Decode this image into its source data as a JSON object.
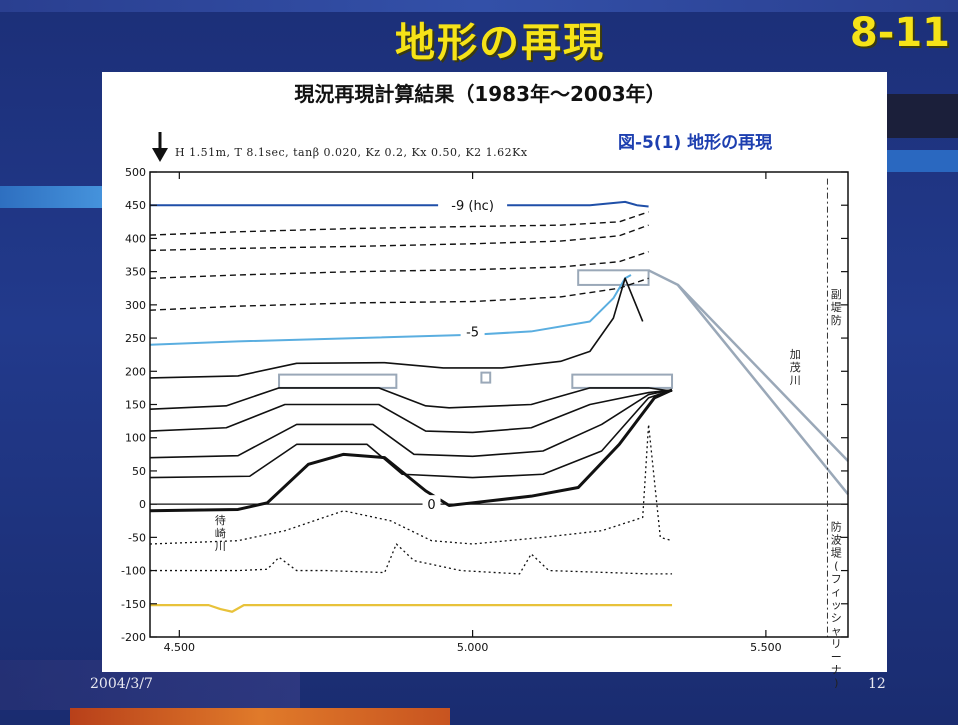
{
  "slide": {
    "title": "地形の再現",
    "number": "8-11",
    "date": "2004/3/7",
    "page": "12"
  },
  "figure": {
    "title": "現況再現計算結果（1983年～2003年）",
    "label": "図-5(1)  地形の再現",
    "params": "H 1.51m, T 8.1sec, tanβ 0.020, Kz 0.2, Kx 0.50, K2 1.62Kx"
  },
  "colors": {
    "accent": "#f6e318",
    "hc_line": "#1f4fa8",
    "minus5_line": "#5aaee0",
    "sand_line": "#e8c23a",
    "structure": "#9aa8b8"
  },
  "chart_data": {
    "type": "line",
    "title": "現況再現計算結果（1983年～2003年）",
    "xlabel": "",
    "ylabel": "",
    "xlim": [
      4.45,
      5.64
    ],
    "ylim": [
      -200,
      500
    ],
    "x_ticks": [
      {
        "value": 4.5,
        "label": "4.500"
      },
      {
        "value": 5.0,
        "label": "5.000"
      },
      {
        "value": 5.5,
        "label": "5.500"
      }
    ],
    "y_ticks": [
      -200,
      -150,
      -100,
      -50,
      0,
      50,
      100,
      150,
      200,
      250,
      300,
      350,
      400,
      450,
      500
    ],
    "annotations": [
      {
        "text": "-9 (hc)",
        "x": 5.0,
        "y": 450
      },
      {
        "text": "-5",
        "x": 5.0,
        "y": 260
      },
      {
        "text": "0",
        "x": 4.93,
        "y": 0
      },
      {
        "text": "待崎川",
        "x": 4.57,
        "y": -30,
        "vertical": true
      },
      {
        "text": "加茂川",
        "x": 5.55,
        "y": 220,
        "vertical": true
      },
      {
        "text": "副堤防",
        "x": 5.62,
        "y": 310,
        "vertical": true
      },
      {
        "text": "防波堤(フィッシャリーナ)",
        "x": 5.62,
        "y": -40,
        "vertical": true
      }
    ],
    "series": [
      {
        "style": "solid-blue",
        "x": [
          4.45,
          4.7,
          5.0,
          5.2,
          5.26,
          5.28,
          5.3
        ],
        "y": [
          450,
          450,
          450,
          450,
          455,
          450,
          448
        ]
      },
      {
        "style": "dashed",
        "x": [
          4.45,
          4.6,
          4.8,
          5.0,
          5.15,
          5.25,
          5.3
        ],
        "y": [
          405,
          410,
          415,
          418,
          420,
          425,
          440
        ]
      },
      {
        "style": "dashed",
        "x": [
          4.45,
          4.6,
          4.8,
          5.0,
          5.15,
          5.25,
          5.3
        ],
        "y": [
          382,
          385,
          388,
          392,
          396,
          404,
          420
        ]
      },
      {
        "style": "dashed",
        "x": [
          4.45,
          4.6,
          4.8,
          5.0,
          5.15,
          5.25,
          5.3
        ],
        "y": [
          340,
          345,
          350,
          353,
          357,
          365,
          380
        ]
      },
      {
        "style": "dashed",
        "x": [
          4.45,
          4.6,
          4.8,
          5.0,
          5.15,
          5.25,
          5.3
        ],
        "y": [
          292,
          298,
          303,
          305,
          312,
          325,
          340
        ]
      },
      {
        "style": "solid-lightblue",
        "x": [
          4.45,
          4.6,
          4.8,
          5.0,
          5.1,
          5.2,
          5.24,
          5.26,
          5.27
        ],
        "y": [
          240,
          245,
          250,
          255,
          260,
          275,
          310,
          340,
          345
        ]
      },
      {
        "style": "solid",
        "x": [
          4.45,
          4.6,
          4.7,
          4.85,
          4.95,
          5.05,
          5.15,
          5.2,
          5.24,
          5.26,
          5.29
        ],
        "y": [
          190,
          193,
          212,
          213,
          205,
          205,
          215,
          230,
          280,
          340,
          275
        ]
      },
      {
        "style": "solid",
        "x": [
          4.45,
          4.58,
          4.67,
          4.84,
          4.92,
          4.96,
          5.1,
          5.2,
          5.3,
          5.34
        ],
        "y": [
          143,
          148,
          175,
          175,
          148,
          145,
          150,
          175,
          175,
          170
        ]
      },
      {
        "style": "solid",
        "x": [
          4.45,
          4.58,
          4.68,
          4.84,
          4.92,
          5.0,
          5.1,
          5.2,
          5.3,
          5.34
        ],
        "y": [
          110,
          115,
          150,
          150,
          110,
          108,
          115,
          150,
          168,
          172
        ]
      },
      {
        "style": "solid",
        "x": [
          4.45,
          4.6,
          4.7,
          4.83,
          4.9,
          5.0,
          5.12,
          5.22,
          5.3,
          5.34
        ],
        "y": [
          70,
          73,
          120,
          120,
          75,
          72,
          80,
          120,
          165,
          172
        ]
      },
      {
        "style": "solid",
        "x": [
          4.45,
          4.62,
          4.7,
          4.82,
          4.88,
          5.0,
          5.12,
          5.22,
          5.3,
          5.34
        ],
        "y": [
          40,
          42,
          90,
          90,
          45,
          40,
          45,
          80,
          160,
          172
        ]
      },
      {
        "style": "solid-bold",
        "x": [
          4.45,
          4.6,
          4.65,
          4.72,
          4.78,
          4.85,
          4.92,
          4.96,
          5.0,
          5.1,
          5.18,
          5.25,
          5.31,
          5.34
        ],
        "y": [
          -10,
          -8,
          2,
          60,
          75,
          70,
          20,
          -2,
          2,
          12,
          25,
          90,
          160,
          172
        ]
      },
      {
        "style": "dotted",
        "x": [
          4.45,
          4.6,
          4.68,
          4.78,
          4.86,
          4.93,
          5.0,
          5.12,
          5.22,
          5.29,
          5.3,
          5.32,
          5.34
        ],
        "y": [
          -60,
          -55,
          -40,
          -10,
          -25,
          -55,
          -60,
          -50,
          -40,
          -20,
          120,
          -50,
          -55
        ]
      },
      {
        "style": "dotted",
        "x": [
          4.45,
          4.6,
          4.65,
          4.67,
          4.7,
          4.75,
          4.85,
          4.87,
          4.9,
          4.98,
          5.08,
          5.1,
          5.13,
          5.3,
          5.34
        ],
        "y": [
          -100,
          -100,
          -98,
          -80,
          -100,
          -100,
          -103,
          -60,
          -85,
          -100,
          -105,
          -75,
          -100,
          -105,
          -105
        ]
      },
      {
        "style": "solid-yellow",
        "x": [
          4.45,
          4.55,
          4.57,
          4.59,
          4.61,
          4.7,
          5.0,
          5.34
        ],
        "y": [
          -152,
          -152,
          -158,
          -162,
          -152,
          -152,
          -152,
          -152
        ]
      }
    ],
    "structures": [
      {
        "x1": 4.67,
        "x2": 4.87,
        "y1": 175,
        "y2": 195
      },
      {
        "x1": 5.17,
        "x2": 5.34,
        "y1": 175,
        "y2": 195
      },
      {
        "x1": 5.18,
        "x2": 5.3,
        "y1": 330,
        "y2": 352
      },
      {
        "x1": 5.015,
        "x2": 5.03,
        "y1": 183,
        "y2": 198
      }
    ]
  }
}
